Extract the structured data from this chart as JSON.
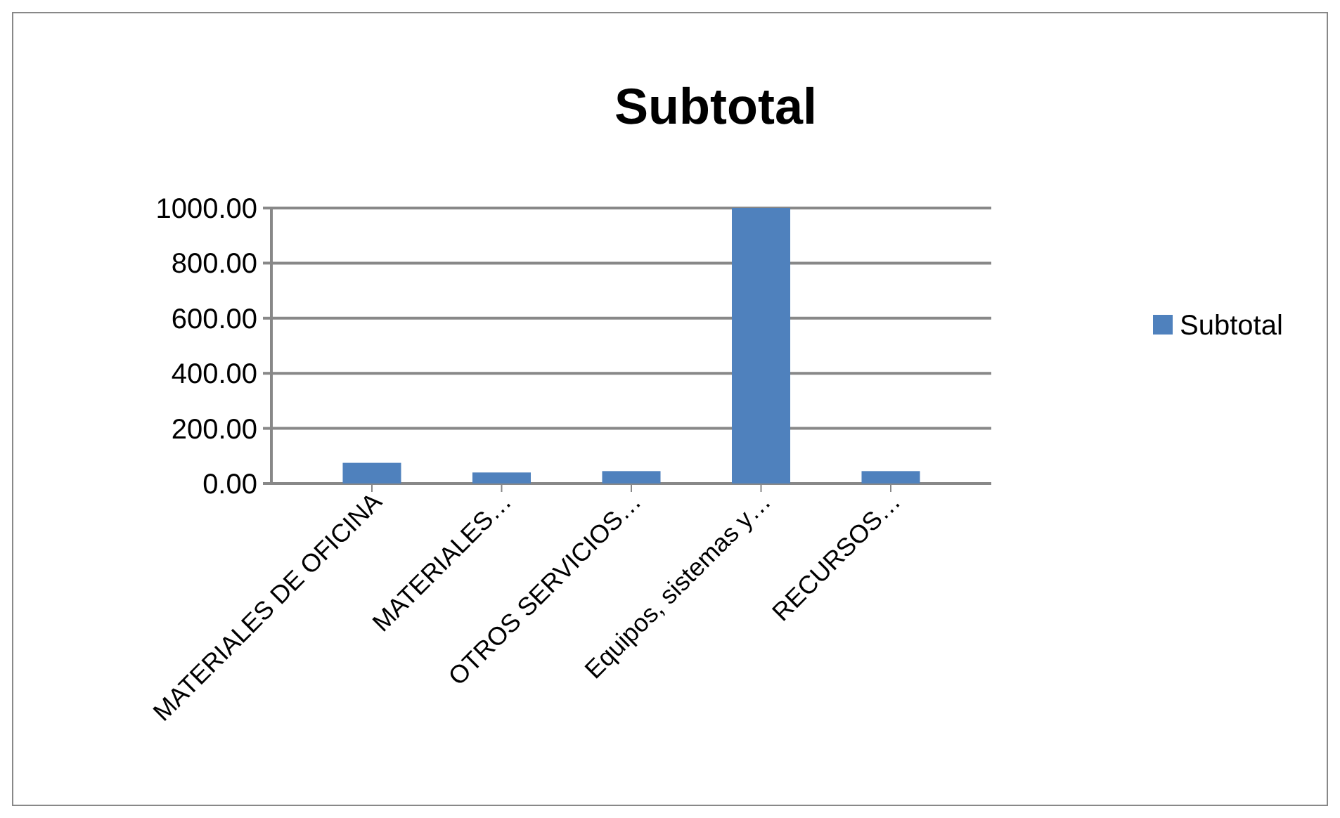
{
  "chart_data": {
    "type": "bar",
    "title": "Subtotal",
    "categories": [
      "MATERIALES DE OFICINA",
      "MATERIALES…",
      "OTROS SERVICIOS…",
      "Equipos, sistemas y…",
      "RECURSOS…"
    ],
    "series": [
      {
        "name": "Subtotal",
        "color": "#4f81bd",
        "values": [
          75,
          40,
          45,
          1000,
          45
        ]
      }
    ],
    "ylim": [
      0,
      1000
    ],
    "yticks": [
      {
        "value": 0,
        "label": "0.00"
      },
      {
        "value": 200,
        "label": "200.00"
      },
      {
        "value": 400,
        "label": "400.00"
      },
      {
        "value": 600,
        "label": "600.00"
      },
      {
        "value": 800,
        "label": "800.00"
      },
      {
        "value": 1000,
        "label": "1000.00"
      }
    ],
    "grid": "y",
    "legend": "right"
  }
}
